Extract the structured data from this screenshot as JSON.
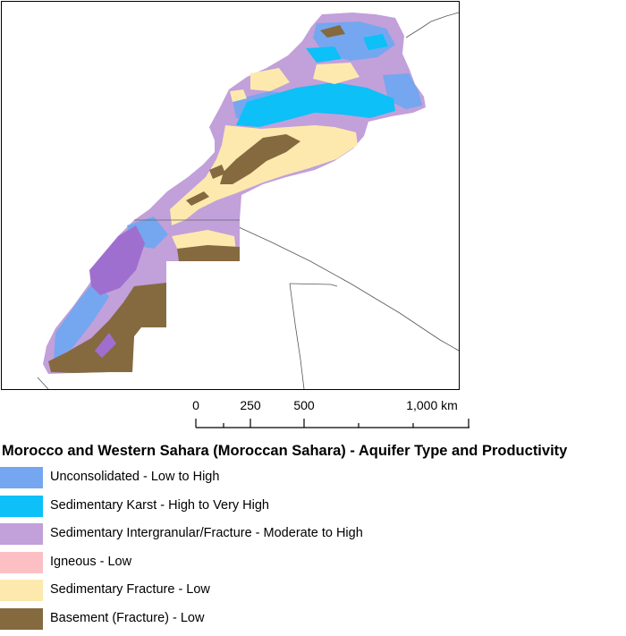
{
  "map": {
    "region": "Morocco and Western Sahara"
  },
  "scale_bar": {
    "labels": [
      "0",
      "250",
      "500",
      "1,000 km"
    ]
  },
  "legend": {
    "title": "Morocco and Western Sahara (Moroccan Sahara) - Aquifer Type and Productivity",
    "items": [
      {
        "label": "Unconsolidated - Low to High",
        "color": "#74a7f0"
      },
      {
        "label": "Sedimentary Karst - High to Very High",
        "color": "#0dc0f7"
      },
      {
        "label": "Sedimentary Intergranular/Fracture - Moderate to High",
        "color": "#c2a0da"
      },
      {
        "label": "Igneous - Low",
        "color": "#fcc0c4"
      },
      {
        "label": "Sedimentary Fracture - Low",
        "color": "#fde9ae"
      },
      {
        "label": "Basement (Fracture) - Low",
        "color": "#856a40"
      }
    ]
  },
  "colors": {
    "unconsolidated": "#74a7f0",
    "karst": "#0dc0f7",
    "intergranular": "#c2a0da",
    "intergranular_dark": "#9f6fcf",
    "igneous": "#fcc0c4",
    "sed_fracture": "#fde9ae",
    "basement": "#856a40"
  }
}
